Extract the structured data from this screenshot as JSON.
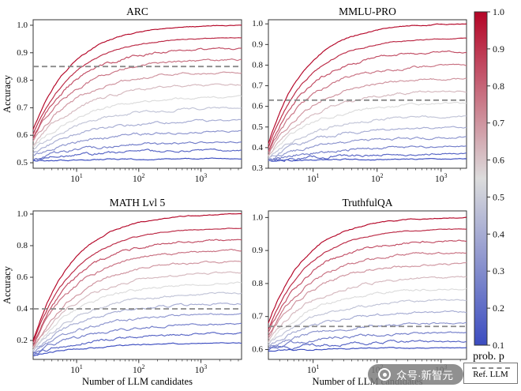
{
  "chart_data": [
    {
      "type": "line",
      "title": "ARC",
      "xlabel": "",
      "ylabel": "Accuracy",
      "xscale": "log",
      "xlim": [
        2,
        4500
      ],
      "xtick_values": [
        10,
        100,
        1000
      ],
      "ylim": [
        0.48,
        1.02
      ],
      "yticks": [
        0.5,
        0.6,
        0.7,
        0.8,
        0.9,
        1.0
      ],
      "ref_value": 0.85,
      "series": [
        {
          "p": 1.0,
          "start": 0.62,
          "end": 1.0
        },
        {
          "p": 0.925,
          "start": 0.605,
          "end": 0.955
        },
        {
          "p": 0.85,
          "start": 0.595,
          "end": 0.915
        },
        {
          "p": 0.775,
          "start": 0.585,
          "end": 0.875
        },
        {
          "p": 0.7,
          "start": 0.575,
          "end": 0.83
        },
        {
          "p": 0.625,
          "start": 0.565,
          "end": 0.785
        },
        {
          "p": 0.55,
          "start": 0.555,
          "end": 0.74
        },
        {
          "p": 0.475,
          "start": 0.545,
          "end": 0.7
        },
        {
          "p": 0.4,
          "start": 0.535,
          "end": 0.655
        },
        {
          "p": 0.325,
          "start": 0.525,
          "end": 0.615
        },
        {
          "p": 0.25,
          "start": 0.515,
          "end": 0.575
        },
        {
          "p": 0.175,
          "start": 0.51,
          "end": 0.545
        },
        {
          "p": 0.1,
          "start": 0.505,
          "end": 0.515
        }
      ]
    },
    {
      "type": "line",
      "title": "MMLU-PRO",
      "xlabel": "",
      "ylabel": "",
      "xscale": "log",
      "xlim": [
        2,
        2500
      ],
      "xtick_values": [
        10,
        100,
        1000
      ],
      "ylim": [
        0.3,
        1.02
      ],
      "yticks": [
        0.3,
        0.4,
        0.5,
        0.6,
        0.7,
        0.8,
        0.9,
        1.0
      ],
      "ref_value": 0.63,
      "series": [
        {
          "p": 1.0,
          "start": 0.42,
          "end": 1.0
        },
        {
          "p": 0.925,
          "start": 0.4,
          "end": 0.93
        },
        {
          "p": 0.85,
          "start": 0.385,
          "end": 0.865
        },
        {
          "p": 0.775,
          "start": 0.375,
          "end": 0.8
        },
        {
          "p": 0.7,
          "start": 0.365,
          "end": 0.735
        },
        {
          "p": 0.625,
          "start": 0.36,
          "end": 0.675
        },
        {
          "p": 0.55,
          "start": 0.355,
          "end": 0.615
        },
        {
          "p": 0.475,
          "start": 0.35,
          "end": 0.555
        },
        {
          "p": 0.4,
          "start": 0.345,
          "end": 0.5
        },
        {
          "p": 0.325,
          "start": 0.34,
          "end": 0.45
        },
        {
          "p": 0.25,
          "start": 0.34,
          "end": 0.405
        },
        {
          "p": 0.175,
          "start": 0.335,
          "end": 0.37
        },
        {
          "p": 0.1,
          "start": 0.335,
          "end": 0.345
        }
      ]
    },
    {
      "type": "line",
      "title": "MATH Lvl 5",
      "xlabel": "Number of LLM candidates",
      "ylabel": "Accuracy",
      "xscale": "log",
      "xlim": [
        2,
        4500
      ],
      "xtick_values": [
        10,
        100,
        1000
      ],
      "ylim": [
        0.08,
        1.02
      ],
      "yticks": [
        0.2,
        0.4,
        0.6,
        0.8,
        1.0
      ],
      "ref_value": 0.4,
      "series": [
        {
          "p": 1.0,
          "start": 0.2,
          "end": 1.0
        },
        {
          "p": 0.925,
          "start": 0.185,
          "end": 0.91
        },
        {
          "p": 0.85,
          "start": 0.175,
          "end": 0.84
        },
        {
          "p": 0.775,
          "start": 0.165,
          "end": 0.77
        },
        {
          "p": 0.7,
          "start": 0.155,
          "end": 0.7
        },
        {
          "p": 0.625,
          "start": 0.15,
          "end": 0.63
        },
        {
          "p": 0.55,
          "start": 0.145,
          "end": 0.565
        },
        {
          "p": 0.475,
          "start": 0.14,
          "end": 0.5
        },
        {
          "p": 0.4,
          "start": 0.135,
          "end": 0.435
        },
        {
          "p": 0.325,
          "start": 0.125,
          "end": 0.37
        },
        {
          "p": 0.25,
          "start": 0.115,
          "end": 0.305
        },
        {
          "p": 0.175,
          "start": 0.11,
          "end": 0.245
        },
        {
          "p": 0.1,
          "start": 0.105,
          "end": 0.185
        }
      ]
    },
    {
      "type": "line",
      "title": "TruthfulQA",
      "xlabel": "Number of LLM candidates",
      "ylabel": "",
      "xscale": "log",
      "xlim": [
        2,
        2500
      ],
      "xtick_values": [
        10,
        100,
        1000
      ],
      "ylim": [
        0.57,
        1.02
      ],
      "yticks": [
        0.6,
        0.7,
        0.8,
        0.9,
        1.0
      ],
      "ref_value": 0.67,
      "series": [
        {
          "p": 1.0,
          "start": 0.68,
          "end": 1.0
        },
        {
          "p": 0.925,
          "start": 0.66,
          "end": 0.965
        },
        {
          "p": 0.85,
          "start": 0.65,
          "end": 0.93
        },
        {
          "p": 0.775,
          "start": 0.64,
          "end": 0.895
        },
        {
          "p": 0.7,
          "start": 0.635,
          "end": 0.86
        },
        {
          "p": 0.625,
          "start": 0.625,
          "end": 0.82
        },
        {
          "p": 0.55,
          "start": 0.62,
          "end": 0.785
        },
        {
          "p": 0.475,
          "start": 0.615,
          "end": 0.75
        },
        {
          "p": 0.4,
          "start": 0.61,
          "end": 0.715
        },
        {
          "p": 0.325,
          "start": 0.605,
          "end": 0.68
        },
        {
          "p": 0.25,
          "start": 0.6,
          "end": 0.65
        },
        {
          "p": 0.175,
          "start": 0.598,
          "end": 0.625
        },
        {
          "p": 0.1,
          "start": 0.595,
          "end": 0.605
        }
      ]
    }
  ],
  "colorbar": {
    "label": "prob. p",
    "tick_labels": [
      "1.0",
      "0.9",
      "0.8",
      "0.7",
      "0.6",
      "0.5",
      "0.4",
      "0.3",
      "0.2",
      "0.1"
    ],
    "p_min": 0.1,
    "p_max": 1.0,
    "colors": {
      "low": "#3b4cc0",
      "mid": "#dcdcdc",
      "high": "#b40426"
    }
  },
  "legend": {
    "ref_label": "Ref. LLM",
    "ref_color": "#8a8a8a"
  },
  "watermark": {
    "text": "众号·新智元"
  }
}
